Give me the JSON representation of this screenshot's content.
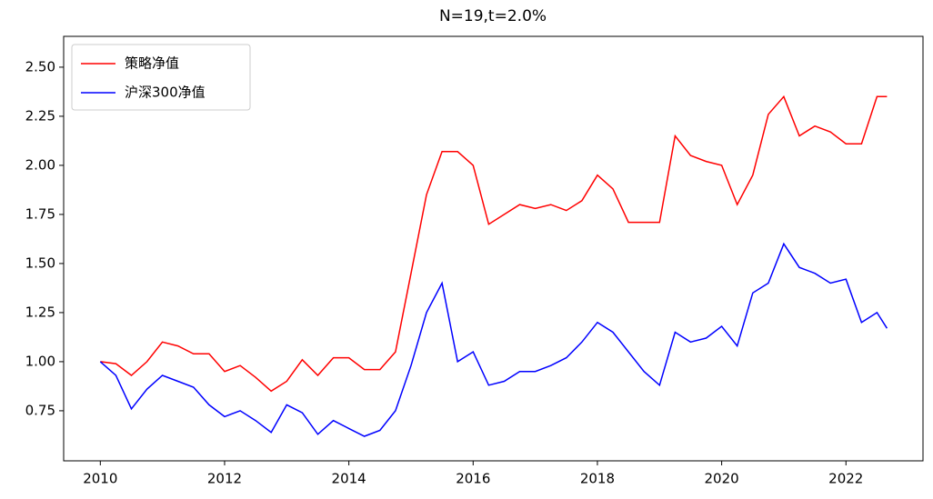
{
  "chart_data": {
    "type": "line",
    "title": "N=19,t=2.0%",
    "x": [
      2010.0,
      2010.25,
      2010.5,
      2010.75,
      2011.0,
      2011.25,
      2011.5,
      2011.75,
      2012.0,
      2012.25,
      2012.5,
      2012.75,
      2013.0,
      2013.25,
      2013.5,
      2013.75,
      2014.0,
      2014.25,
      2014.5,
      2014.75,
      2015.0,
      2015.25,
      2015.5,
      2015.75,
      2016.0,
      2016.25,
      2016.5,
      2016.75,
      2017.0,
      2017.25,
      2017.5,
      2017.75,
      2018.0,
      2018.25,
      2018.5,
      2018.75,
      2019.0,
      2019.25,
      2019.5,
      2019.75,
      2020.0,
      2020.25,
      2020.5,
      2020.75,
      2021.0,
      2021.25,
      2021.5,
      2021.75,
      2022.0,
      2022.25,
      2022.5,
      2022.66
    ],
    "series": [
      {
        "name": "策略净值",
        "color": "#ff0000",
        "values": [
          1.0,
          0.99,
          0.93,
          1.0,
          1.1,
          1.08,
          1.04,
          1.04,
          0.95,
          0.98,
          0.92,
          0.85,
          0.9,
          1.01,
          0.93,
          1.02,
          1.02,
          0.96,
          0.96,
          1.05,
          1.45,
          1.85,
          2.07,
          2.07,
          2.0,
          1.7,
          1.75,
          1.8,
          1.78,
          1.8,
          1.77,
          1.82,
          1.95,
          1.88,
          1.71,
          1.71,
          1.71,
          2.15,
          2.05,
          2.02,
          2.0,
          1.8,
          1.95,
          2.26,
          2.35,
          2.15,
          2.2,
          2.17,
          2.11,
          2.11,
          2.35,
          2.35
        ]
      },
      {
        "name": "沪深300净值",
        "color": "#0000ff",
        "values": [
          1.0,
          0.93,
          0.76,
          0.86,
          0.93,
          0.9,
          0.87,
          0.78,
          0.72,
          0.75,
          0.7,
          0.64,
          0.78,
          0.74,
          0.63,
          0.7,
          0.66,
          0.62,
          0.65,
          0.75,
          0.98,
          1.25,
          1.4,
          1.0,
          1.05,
          0.88,
          0.9,
          0.95,
          0.95,
          0.98,
          1.02,
          1.1,
          1.2,
          1.15,
          1.05,
          0.95,
          0.88,
          1.15,
          1.1,
          1.12,
          1.18,
          1.08,
          1.35,
          1.4,
          1.6,
          1.48,
          1.45,
          1.4,
          1.42,
          1.2,
          1.25,
          1.17
        ]
      }
    ],
    "xlim": [
      2009.41,
      2023.24
    ],
    "xticks": [
      2010,
      2012,
      2014,
      2016,
      2018,
      2020,
      2022
    ],
    "ylim": [
      0.495,
      2.657
    ],
    "yticks": [
      {
        "value": 0.75,
        "label": "0.75"
      },
      {
        "value": 1.0,
        "label": "1.00"
      },
      {
        "value": 1.25,
        "label": "1.25"
      },
      {
        "value": 1.5,
        "label": "1.50"
      },
      {
        "value": 1.75,
        "label": "1.75"
      },
      {
        "value": 2.0,
        "label": "2.00"
      },
      {
        "value": 2.25,
        "label": "2.25"
      },
      {
        "value": 2.5,
        "label": "2.50"
      }
    ],
    "legend": "upper left"
  }
}
